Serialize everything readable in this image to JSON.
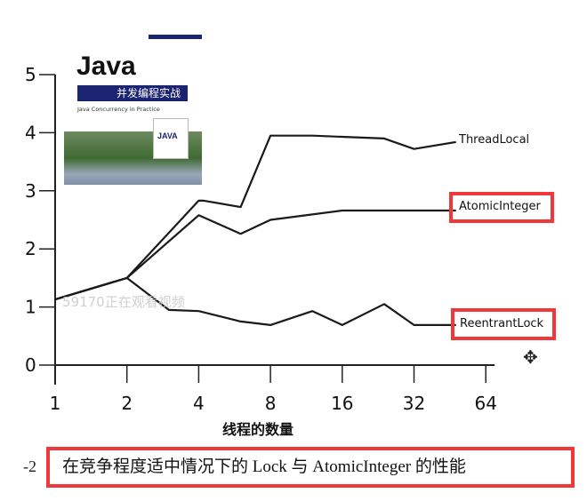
{
  "chart_data": {
    "type": "line",
    "xlabel": "线程的数量",
    "ylabel": "",
    "x_scale": "log2",
    "x_ticks": [
      1,
      2,
      4,
      8,
      16,
      32,
      64
    ],
    "y_ticks": [
      0,
      1,
      2,
      3,
      4,
      5
    ],
    "ylim": [
      0,
      5
    ],
    "grid": false,
    "series": [
      {
        "name": "ThreadLocal",
        "x": [
          1,
          2,
          4,
          4.2,
          6,
          8,
          12,
          24,
          32,
          48
        ],
        "y": [
          1.13,
          1.5,
          2.83,
          2.83,
          2.72,
          3.95,
          3.95,
          3.9,
          3.72,
          3.84
        ]
      },
      {
        "name": "AtomicInteger",
        "x": [
          1,
          2,
          4,
          6,
          8,
          16,
          48
        ],
        "y": [
          1.13,
          1.5,
          2.58,
          2.26,
          2.5,
          2.66,
          2.66
        ]
      },
      {
        "name": "ReentrantLock",
        "x": [
          1,
          2,
          3,
          4,
          6,
          8,
          12,
          16,
          24,
          32,
          48
        ],
        "y": [
          1.13,
          1.5,
          0.95,
          0.93,
          0.75,
          0.69,
          0.93,
          0.69,
          1.05,
          0.69,
          0.69
        ]
      }
    ],
    "caption": "在竞争程度适中情况下的 Lock 与 AtomicInteger 的性能",
    "figure_number": "-2",
    "highlight_color": "#f0373a"
  },
  "cover": {
    "title": "Java",
    "subtitle_cn": "并发编程实战",
    "subtitle_en": "Java Concurrency in Practice",
    "inset": "JAVA"
  },
  "overlay": {
    "watermark": "59170正在观看视频"
  }
}
